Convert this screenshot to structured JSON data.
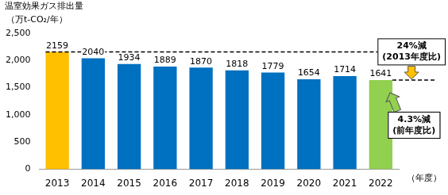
{
  "chart_data": {
    "type": "bar",
    "ylabel": "温室効果ガス排出量",
    "yunit": "（万t-CO₂/年）",
    "xlabel": "（年度）",
    "categories": [
      "2013",
      "2014",
      "2015",
      "2016",
      "2017",
      "2018",
      "2019",
      "2020",
      "2021",
      "2022"
    ],
    "values": [
      2159,
      2040,
      1934,
      1889,
      1870,
      1818,
      1779,
      1654,
      1714,
      1641
    ],
    "colors": [
      "#FFC000",
      "#0070C0",
      "#0070C0",
      "#0070C0",
      "#0070C0",
      "#0070C0",
      "#0070C0",
      "#0070C0",
      "#0070C0",
      "#92D050"
    ],
    "ylim": [
      0,
      2500
    ],
    "yticks": [
      0,
      500,
      {
        "value": 1000,
        "label": "1,000"
      },
      {
        "value": 1500,
        "label": "1,500"
      },
      {
        "value": 2000,
        "label": "2,000"
      },
      {
        "value": 2500,
        "label": "2,500"
      }
    ],
    "grid": false,
    "data_labels": true,
    "reference_line": 2159,
    "annotations": [
      {
        "lines": [
          "24%減",
          "(2013年度比)"
        ],
        "color": "#FFC000"
      },
      {
        "lines": [
          "4.3%減",
          "(前年度比)"
        ],
        "color": "#92D050"
      }
    ]
  }
}
